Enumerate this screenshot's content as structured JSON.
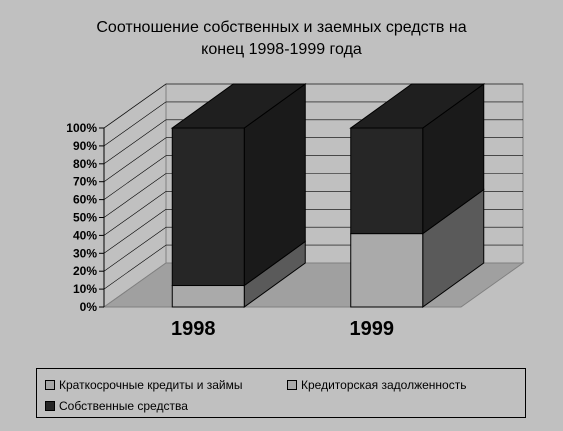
{
  "chart_data": {
    "type": "bar",
    "stacked": true,
    "three_d": true,
    "title": "Соотношение собственных и заемных средств  на\nконец 1998-1999 года",
    "categories": [
      "1998",
      "1999"
    ],
    "series": [
      {
        "name": "Краткосрочные кредиты и займы",
        "values": [
          0,
          0
        ],
        "color": "#a6a6a6"
      },
      {
        "name": "Кредиторская задолженность",
        "values": [
          12,
          41
        ],
        "color": "#aaaaaa"
      },
      {
        "name": "Собственные средства",
        "values": [
          88,
          59
        ],
        "color": "#262626"
      }
    ],
    "y_ticks": [
      "0%",
      "10%",
      "20%",
      "30%",
      "40%",
      "50%",
      "60%",
      "70%",
      "80%",
      "90%",
      "100%"
    ],
    "ylim": [
      0,
      100
    ],
    "grid": true,
    "legend_position": "bottom"
  }
}
